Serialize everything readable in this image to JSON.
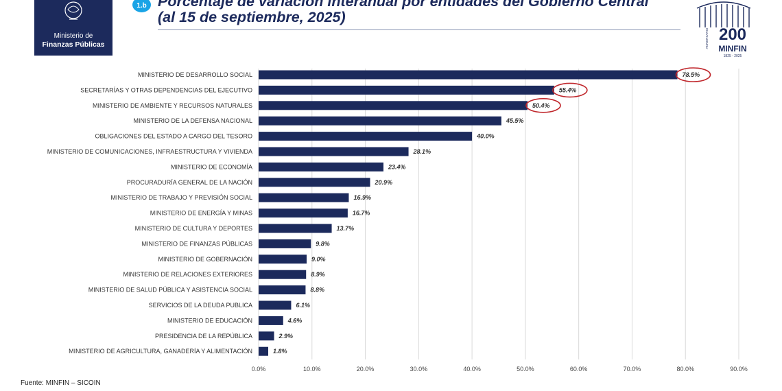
{
  "header": {
    "logo_line1": "Ministerio de",
    "logo_line2": "Finanzas Públicas",
    "badge": "1.b",
    "title_line1": "Porcentaje de variación interanual por entidades del Gobierno Central",
    "title_line2": "(al 15 de septiembre, 2025)",
    "anniversary_number": "200",
    "anniversary_word": "ANIVERSARIO",
    "anniversary_brand": "MINFIN",
    "anniversary_years": "1825 - 2025",
    "brand_color": "#1c2a5c",
    "badge_color": "#1aa4e6"
  },
  "footer": {
    "source": "Fuente: MINFIN – SICOIN"
  },
  "chart_data": {
    "type": "bar",
    "orientation": "horizontal",
    "title": "",
    "xlabel": "",
    "ylabel": "",
    "xlim": [
      0,
      90
    ],
    "xticks": [
      "0.0%",
      "10.0%",
      "20.0%",
      "30.0%",
      "40.0%",
      "50.0%",
      "60.0%",
      "70.0%",
      "80.0%",
      "90.0%"
    ],
    "grid": "vertical",
    "bar_color": "#1c2a5c",
    "highlight_color": "#c0282d",
    "categories": [
      "MINISTERIO DE DESARROLLO SOCIAL",
      "SECRETARÍAS Y OTRAS DEPENDENCIAS DEL EJECUTIVO",
      "MINISTERIO DE AMBIENTE Y RECURSOS NATURALES",
      "MINISTERIO DE LA DEFENSA NACIONAL",
      "OBLIGACIONES DEL ESTADO A CARGO DEL TESORO",
      "MINISTERIO DE  COMUNICACIONES, INFRAESTRUCTURA Y VIVIENDA",
      "MINISTERIO DE ECONOMÍA",
      "PROCURADURÍA GENERAL DE LA NACIÓN",
      "MINISTERIO DE TRABAJO Y PREVISIÓN SOCIAL",
      "MINISTERIO DE ENERGÍA Y MINAS",
      "MINISTERIO DE CULTURA Y DEPORTES",
      "MINISTERIO DE FINANZAS PÚBLICAS",
      "MINISTERIO DE GOBERNACIÓN",
      "MINISTERIO DE RELACIONES EXTERIORES",
      "MINISTERIO DE SALUD PÚBLICA Y ASISTENCIA SOCIAL",
      "SERVICIOS DE LA DEUDA PUBLICA",
      "MINISTERIO DE EDUCACIÓN",
      "PRESIDENCIA DE LA REPÚBLICA",
      "MINISTERIO DE AGRICULTURA, GANADERÍA Y ALIMENTACIÓN"
    ],
    "values": [
      78.5,
      55.4,
      50.4,
      45.5,
      40.0,
      28.1,
      23.4,
      20.9,
      16.9,
      16.7,
      13.7,
      9.8,
      9.0,
      8.9,
      8.8,
      6.1,
      4.6,
      2.9,
      1.8
    ],
    "labels": [
      "78.5%",
      "55.4%",
      "50.4%",
      "45.5%",
      "40.0%",
      "28.1%",
      "23.4%",
      "20.9%",
      "16.9%",
      "16.7%",
      "13.7%",
      "9.8%",
      "9.0%",
      "8.9%",
      "8.8%",
      "6.1%",
      "4.6%",
      "2.9%",
      "1.8%"
    ],
    "highlighted": [
      true,
      true,
      true,
      false,
      false,
      false,
      false,
      false,
      false,
      false,
      false,
      false,
      false,
      false,
      false,
      false,
      false,
      false,
      false
    ]
  }
}
